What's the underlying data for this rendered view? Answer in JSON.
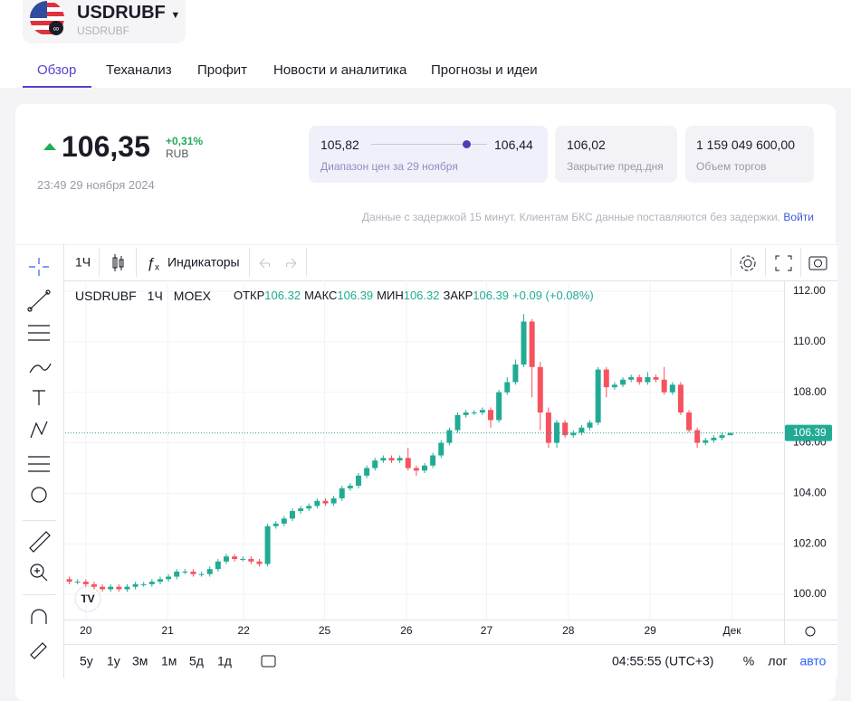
{
  "header": {
    "ticker": "USDRUBF",
    "subtitle": "USDRUBF"
  },
  "tabs": [
    "Обзор",
    "Теханализ",
    "Профит",
    "Новости и аналитика",
    "Прогнозы и идеи"
  ],
  "quote": {
    "price": "106,35",
    "change": "+0,31%",
    "currency": "RUB",
    "datetime": "23:49 29 ноября 2024"
  },
  "stats": {
    "range_low": "105,82",
    "range_high": "106,44",
    "range_label": "Диапазон цен за 29 ноября",
    "prev_close": "106,02",
    "prev_close_label": "Закрытие пред.дня",
    "volume": "1 159 049 600,00",
    "volume_label": "Объем торгов"
  },
  "notice": {
    "text": "Данные с задержкой 15 минут. Клиентам БКС данные поставляются без задержки.",
    "link": "Войти"
  },
  "toolbar": {
    "interval": "1Ч",
    "indicators": "Индикаторы"
  },
  "legend": {
    "symbol": "USDRUBF",
    "interval": "1Ч",
    "exchange": "MOEX",
    "open_label": "ОТКР",
    "open": 106.32,
    "high_label": "МАКС",
    "high": 106.39,
    "low_label": "МИН",
    "low": 106.32,
    "close_label": "ЗАКР",
    "close": 106.39,
    "change": "+0.09 (+0.08%)"
  },
  "bottom_bar": {
    "ranges": [
      "5y",
      "1y",
      "3м",
      "1м",
      "5д",
      "1д"
    ],
    "time": "04:55:55 (UTC+3)",
    "percent": "%",
    "log": "лог",
    "auto": "авто"
  },
  "chart_data": {
    "type": "candlestick",
    "up_color": "#22ab94",
    "down_color": "#f7525f",
    "grid": true,
    "open": [
      100.6,
      100.5,
      100.5,
      100.4,
      100.3,
      100.2,
      100.3,
      100.2,
      100.3,
      100.4,
      100.4,
      100.5,
      100.6,
      100.7,
      100.9,
      100.9,
      100.8,
      100.8,
      101.0,
      101.3,
      101.5,
      101.4,
      101.4,
      101.3,
      101.2,
      102.7,
      102.8,
      103.0,
      103.3,
      103.4,
      103.5,
      103.7,
      103.6,
      103.8,
      104.2,
      104.3,
      104.7,
      105.0,
      105.3,
      105.4,
      105.3,
      105.4,
      105.0,
      104.9,
      105.1,
      105.5,
      106.0,
      106.5,
      107.1,
      107.2,
      107.2,
      107.3,
      106.9,
      108.0,
      108.4,
      109.1,
      110.8,
      109.0,
      107.2,
      106.0,
      106.8,
      106.3,
      106.4,
      106.6,
      106.8,
      108.9,
      108.2,
      108.3,
      108.5,
      108.6,
      108.4,
      108.6,
      108.5,
      108.0,
      108.3,
      107.2,
      106.5,
      106.0,
      106.1,
      106.2,
      106.3
    ],
    "high": [
      100.7,
      100.6,
      100.6,
      100.5,
      100.4,
      100.4,
      100.4,
      100.4,
      100.5,
      100.5,
      100.6,
      100.7,
      100.8,
      101.0,
      101.0,
      101.0,
      100.9,
      101.1,
      101.4,
      101.6,
      101.6,
      101.5,
      101.5,
      101.4,
      102.8,
      102.9,
      103.1,
      103.4,
      103.5,
      103.6,
      103.8,
      103.8,
      103.9,
      104.3,
      104.4,
      104.8,
      105.1,
      105.4,
      105.5,
      105.5,
      105.5,
      105.8,
      105.1,
      105.2,
      105.6,
      106.1,
      106.6,
      107.2,
      107.3,
      107.3,
      107.4,
      107.4,
      108.1,
      108.6,
      109.3,
      111.1,
      110.9,
      109.2,
      107.4,
      106.9,
      106.9,
      106.5,
      106.7,
      106.9,
      109.0,
      109.0,
      108.4,
      108.6,
      108.7,
      108.7,
      108.8,
      108.7,
      109.0,
      108.4,
      108.4,
      107.3,
      106.6,
      106.2,
      106.3,
      106.4,
      106.4
    ],
    "low": [
      100.4,
      100.4,
      100.3,
      100.2,
      100.1,
      100.1,
      100.1,
      100.1,
      100.2,
      100.3,
      100.3,
      100.4,
      100.5,
      100.6,
      100.8,
      100.7,
      100.7,
      100.7,
      100.9,
      101.2,
      101.3,
      101.3,
      101.2,
      101.1,
      101.1,
      102.6,
      102.7,
      102.9,
      103.2,
      103.3,
      103.4,
      103.5,
      103.5,
      103.7,
      104.1,
      104.2,
      104.6,
      104.9,
      105.2,
      105.2,
      105.2,
      104.9,
      104.7,
      104.8,
      105.0,
      105.4,
      105.9,
      106.4,
      107.0,
      107.1,
      107.1,
      106.6,
      106.8,
      107.9,
      108.3,
      109.0,
      107.8,
      106.5,
      105.8,
      105.8,
      106.2,
      106.2,
      106.3,
      106.5,
      106.7,
      107.8,
      108.1,
      108.2,
      108.4,
      108.3,
      108.3,
      108.4,
      107.9,
      107.9,
      107.1,
      106.4,
      105.8,
      105.9,
      106.0,
      106.1,
      106.3
    ],
    "close": [
      100.5,
      100.5,
      100.4,
      100.3,
      100.2,
      100.3,
      100.2,
      100.3,
      100.4,
      100.4,
      100.5,
      100.6,
      100.7,
      100.9,
      100.9,
      100.8,
      100.8,
      101.0,
      101.3,
      101.5,
      101.4,
      101.4,
      101.3,
      101.2,
      102.7,
      102.8,
      103.0,
      103.3,
      103.4,
      103.5,
      103.7,
      103.6,
      103.8,
      104.2,
      104.3,
      104.7,
      105.0,
      105.3,
      105.4,
      105.3,
      105.4,
      105.0,
      104.9,
      105.1,
      105.5,
      106.0,
      106.5,
      107.1,
      107.2,
      107.2,
      107.3,
      106.9,
      108.0,
      108.4,
      109.1,
      110.8,
      109.0,
      107.2,
      106.0,
      106.8,
      106.3,
      106.4,
      106.6,
      106.8,
      108.9,
      108.2,
      108.3,
      108.5,
      108.6,
      108.4,
      108.6,
      108.5,
      108.0,
      108.3,
      107.2,
      106.5,
      106.0,
      106.1,
      106.2,
      106.3,
      106.39
    ],
    "xlim": [
      -0.5,
      86.5
    ],
    "xticks": [
      {
        "value": 2.0,
        "label": "20"
      },
      {
        "value": 11.9,
        "label": "21"
      },
      {
        "value": 21.1,
        "label": "22"
      },
      {
        "value": 30.9,
        "label": "25"
      },
      {
        "value": 40.8,
        "label": "26"
      },
      {
        "value": 50.5,
        "label": "27"
      },
      {
        "value": 60.4,
        "label": "28"
      },
      {
        "value": 70.3,
        "label": "29"
      },
      {
        "value": 80.2,
        "label": "Дек"
      }
    ],
    "ylim": [
      99.0,
      112.43
    ],
    "yticks": [
      {
        "value": 100,
        "label": "100.00"
      },
      {
        "value": 102,
        "label": "102.00"
      },
      {
        "value": 104,
        "label": "104.00"
      },
      {
        "value": 106,
        "label": "106.00"
      },
      {
        "value": 108,
        "label": "108.00"
      },
      {
        "value": 110,
        "label": "110.00"
      },
      {
        "value": 112,
        "label": "112.00"
      }
    ],
    "last_price": {
      "value": 106.39,
      "label": "106.39"
    }
  }
}
